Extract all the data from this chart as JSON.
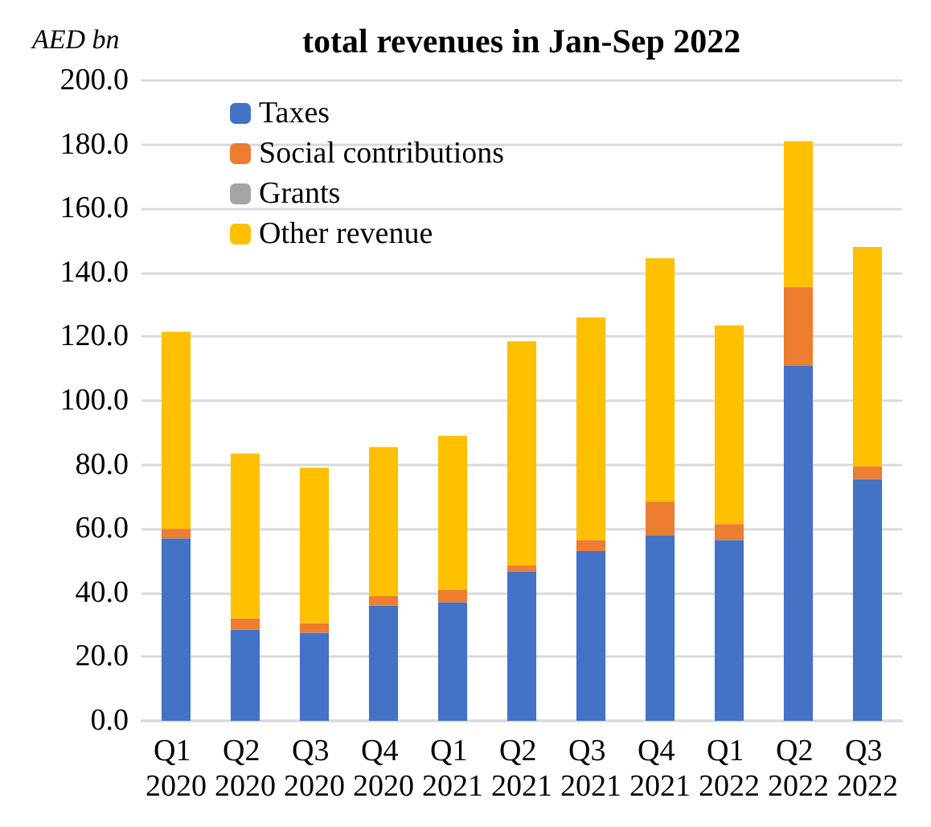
{
  "chart_data": {
    "type": "bar",
    "title": "total revenues in Jan-Sep 2022",
    "ylabel": "AED bn",
    "stacked": true,
    "categories": [
      "Q1 2020",
      "Q2 2020",
      "Q3 2020",
      "Q4 2020",
      "Q1 2021",
      "Q2 2021",
      "Q3 2021",
      "Q4 2021",
      "Q1 2022",
      "Q2 2022",
      "Q3 2022"
    ],
    "series": [
      {
        "name": "Taxes",
        "color": "#4472c4",
        "values": [
          57,
          28.5,
          27.5,
          36,
          37,
          46.5,
          53,
          58,
          56.5,
          111,
          75.5
        ]
      },
      {
        "name": "Social contributions",
        "color": "#ed7d31",
        "values": [
          3,
          3.5,
          3,
          3,
          4,
          2,
          3.5,
          10.5,
          5,
          24.5,
          4
        ]
      },
      {
        "name": "Grants",
        "color": "#a5a5a5",
        "values": [
          0,
          0,
          0,
          0,
          0,
          0,
          0,
          0,
          0,
          0,
          0
        ]
      },
      {
        "name": "Other revenue",
        "color": "#ffc000",
        "values": [
          61.5,
          51.5,
          48.5,
          46.5,
          48,
          70,
          69.5,
          76,
          62,
          45.5,
          68.5
        ]
      }
    ],
    "ylim": [
      0,
      200
    ],
    "yticks": [
      {
        "value": 0,
        "label": "0.0"
      },
      {
        "value": 20,
        "label": "20.0"
      },
      {
        "value": 40,
        "label": "40.0"
      },
      {
        "value": 60,
        "label": "60.0"
      },
      {
        "value": 80,
        "label": "80.0"
      },
      {
        "value": 100,
        "label": "100.0"
      },
      {
        "value": 120,
        "label": "120.0"
      },
      {
        "value": 140,
        "label": "140.0"
      },
      {
        "value": 160,
        "label": "160.0"
      },
      {
        "value": 180,
        "label": "180.0"
      },
      {
        "value": 200,
        "label": "200.0"
      }
    ],
    "grid": "y",
    "legend": "top left"
  }
}
